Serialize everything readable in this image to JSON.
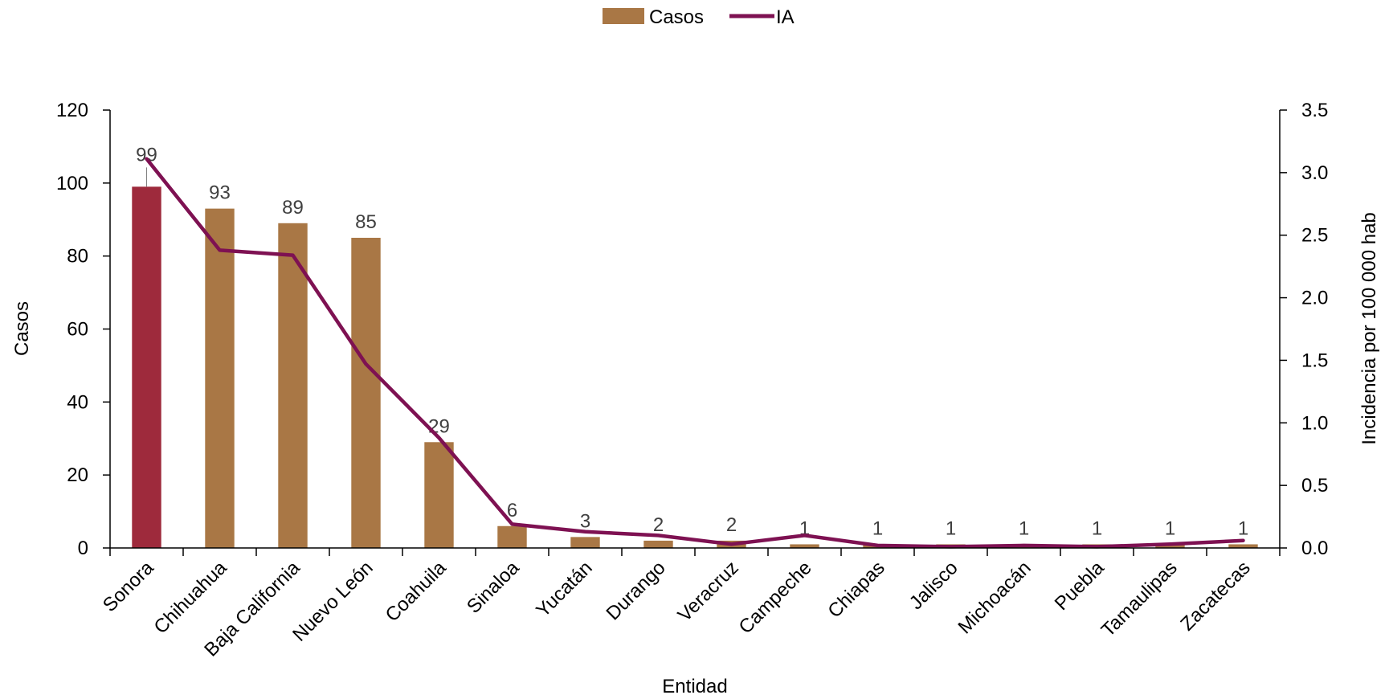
{
  "chart_data": {
    "type": "bar",
    "categories": [
      "Sonora",
      "Chihuahua",
      "Baja California",
      "Nuevo León",
      "Coahuila",
      "Sinaloa",
      "Yucatán",
      "Durango",
      "Veracruz",
      "Campeche",
      "Chiapas",
      "Jalisco",
      "Michoacán",
      "Puebla",
      "Tamaulipas",
      "Zacatecas"
    ],
    "series": [
      {
        "name": "Casos",
        "type": "bar",
        "axis": "left",
        "values": [
          99,
          93,
          89,
          85,
          29,
          6,
          3,
          2,
          2,
          1,
          1,
          1,
          1,
          1,
          1,
          1
        ],
        "data_labels": [
          "99",
          "93",
          "89",
          "85",
          "29",
          "6",
          "3",
          "2",
          "2",
          "1",
          "1",
          "1",
          "1",
          "1",
          "1",
          "1"
        ],
        "color": "#A97745",
        "highlight_index": 0,
        "highlight_color": "#9E2A3C"
      },
      {
        "name": "IA",
        "type": "line",
        "axis": "right",
        "values": [
          3.11,
          2.38,
          2.34,
          1.47,
          0.88,
          0.19,
          0.13,
          0.1,
          0.03,
          0.1,
          0.02,
          0.01,
          0.02,
          0.01,
          0.03,
          0.06
        ],
        "color": "#7E1152"
      }
    ],
    "xlabel": "Entidad",
    "ylabel": "Casos",
    "y2label": "Incidencia por 100 000 hab",
    "ylim": [
      0,
      120
    ],
    "y2lim": [
      0,
      3.5
    ],
    "yticks": [
      "0",
      "20",
      "40",
      "60",
      "80",
      "100",
      "120"
    ],
    "y2ticks": [
      "0.0",
      "0.5",
      "1.0",
      "1.5",
      "2.0",
      "2.5",
      "3.0",
      "3.5"
    ],
    "grid": false,
    "legend_position": "top-center"
  }
}
